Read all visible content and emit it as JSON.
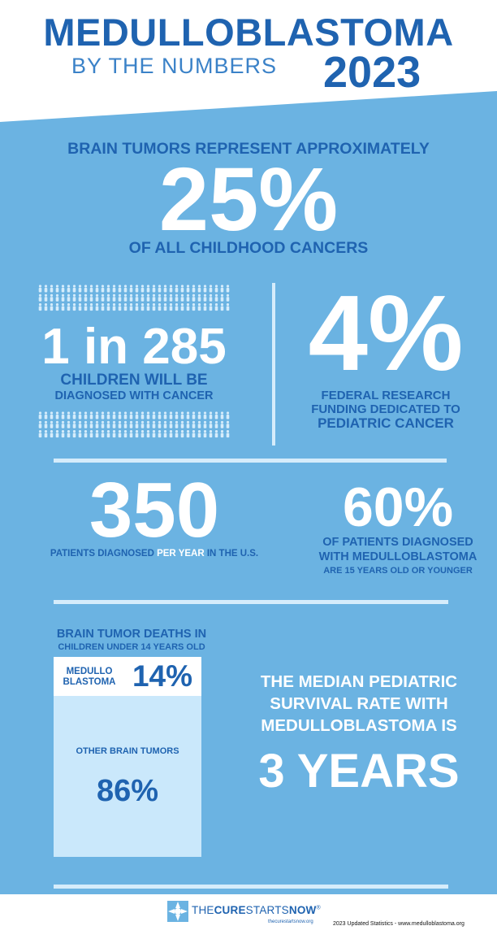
{
  "header": {
    "title": "MEDULLOBLASTOMA",
    "subtitle": "BY THE NUMBERS",
    "year": "2023"
  },
  "stat_childhood": {
    "intro": "BRAIN TUMORS REPRESENT APPROXIMATELY",
    "value": "25%",
    "outro": "OF ALL CHILDHOOD CANCERS"
  },
  "stat_children": {
    "ratio": "1 in 285",
    "line1": "CHILDREN WILL BE",
    "line2": "DIAGNOSED WITH CANCER"
  },
  "stat_funding": {
    "value": "4%",
    "line1": "FEDERAL RESEARCH",
    "line2": "FUNDING DEDICATED TO",
    "line3": "PEDIATRIC CANCER"
  },
  "stat_patients": {
    "value": "350",
    "text_before": "PATIENTS DIAGNOSED ",
    "highlight": "PER YEAR",
    "text_after": " IN THE U.S."
  },
  "stat_age": {
    "value": "60%",
    "line1": "OF PATIENTS DIAGNOSED",
    "line2": "WITH MEDULLOBLASTOMA",
    "line3": "ARE 15 YEARS OLD OR YOUNGER"
  },
  "stat_deaths": {
    "title1": "BRAIN TUMOR DEATHS IN",
    "title2": "CHILDREN UNDER 14 YEARS OLD",
    "medullo_label1": "MEDULLO",
    "medullo_label2": "BLASTOMA",
    "medullo_value": "14%",
    "medullo_fraction": 0.14,
    "other_label": "OTHER BRAIN TUMORS",
    "other_value": "86%",
    "other_fraction": 0.86
  },
  "stat_survival": {
    "line1": "THE MEDIAN PEDIATRIC",
    "line2": "SURVIVAL RATE WITH",
    "line3": "MEDULLOBLASTOMA IS",
    "value": "3 YEARS"
  },
  "footer": {
    "logo_the": "THE",
    "logo_cure": "CURE",
    "logo_starts": "STARTS",
    "logo_now": "NOW",
    "logo_mark": "®",
    "logo_url": "thecurestartsnow.org",
    "credits": "2023 Updated Statistics - www.medulloblastoma.org"
  },
  "colors": {
    "background": "#6bb3e2",
    "dark_blue": "#1f63b0",
    "light_blue": "#cae8fb",
    "white": "#ffffff"
  },
  "icons": [
    "person-icon",
    "cure-starts-now-logo-icon"
  ]
}
